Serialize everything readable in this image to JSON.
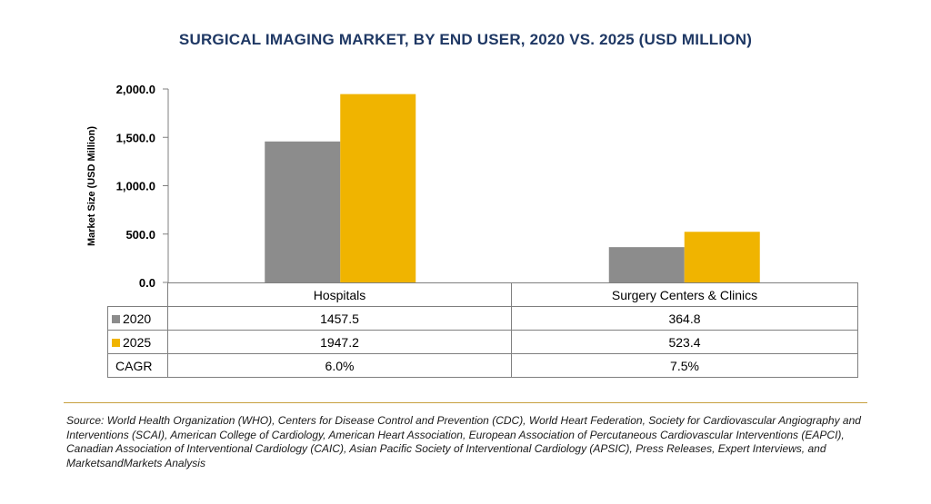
{
  "chart_data": {
    "type": "bar",
    "title": "SURGICAL IMAGING MARKET, BY END USER, 2020 VS. 2025 (USD MILLION)",
    "ylabel": "Market Size (USD Million)",
    "xlabel": "",
    "ylim": [
      0,
      2000
    ],
    "yticks": [
      "0.0",
      "500.0",
      "1,000.0",
      "1,500.0",
      "2,000.0"
    ],
    "categories": [
      "Hospitals",
      "Surgery Centers & Clinics"
    ],
    "series": [
      {
        "name": "2020",
        "values": [
          1457.5,
          364.8
        ],
        "labels": [
          "1457.5",
          "364.8"
        ],
        "color": "#8c8c8c"
      },
      {
        "name": "2025",
        "values": [
          1947.2,
          523.4
        ],
        "labels": [
          "1947.2",
          "523.4"
        ],
        "color": "#f0b400"
      }
    ],
    "cagr": {
      "label": "CAGR",
      "values": [
        "6.0%",
        "7.5%"
      ]
    },
    "grid": false,
    "legend": "table"
  },
  "source": "Source: World Health Organization (WHO), Centers for Disease Control and Prevention (CDC), World Heart Federation, Society for Cardiovascular Angiography and Interventions (SCAI), American College of Cardiology, American Heart Association, European Association of Percutaneous Cardiovascular Interventions (EAPCI), Canadian Association of Interventional Cardiology (CAIC), Asian Pacific Society of Interventional Cardiology (APSIC), Press Releases, Expert Interviews, and MarketsandMarkets Analysis",
  "colors": {
    "title": "#1f3864",
    "rule": "#c7a040"
  }
}
